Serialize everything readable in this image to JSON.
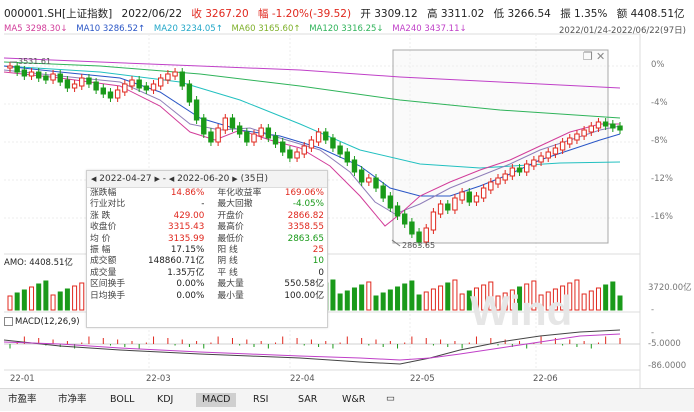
{
  "header": {
    "code": "000001.SH[上证指数]",
    "date": "2022/06/22",
    "close": "收 3267.20",
    "change": "幅 -1.20%(-39.52)",
    "open": "开 3309.12",
    "high": "高 3311.02",
    "low": "低 3266.54",
    "turnover": "振 1.35%",
    "amount": "额 4408.51亿"
  },
  "ma_legend": [
    {
      "label": "MA5 3298.30↓",
      "color": "#d23d9a"
    },
    {
      "label": "MA10 3286.52↑",
      "color": "#2a56c6"
    },
    {
      "label": "MA20 3234.05↑",
      "color": "#22a7c8"
    },
    {
      "label": "MA60 3165.60↑",
      "color": "#7fb02b"
    },
    {
      "label": "MA120 3316.25↓",
      "color": "#2fb35a"
    },
    {
      "label": "MA240 3437.11↓",
      "color": "#c040c8"
    }
  ],
  "date_range": "2022/01/24-2022/06/22(97日)",
  "y_axis": [
    "0%",
    "-4%",
    "-8%",
    "-12%",
    "-16%"
  ],
  "annotations": {
    "high": "3531.61",
    "low": "2863.65"
  },
  "volume": {
    "label": "AMO: 4408.51亿",
    "axis": "3720.00亿"
  },
  "macd": {
    "label": "MACD(12,26,9)",
    "axis_top": "-5.0000",
    "axis_bottom": "-86.0000",
    "axis_neg": "-",
    "axis_neg2": "-"
  },
  "x_axis": [
    "22-01",
    "22-03",
    "22-04",
    "22-05",
    "22-06"
  ],
  "watermark": "Wind",
  "stats_panel": {
    "start_date": "2022-04-27",
    "dash": "-",
    "end_date": "2022-06-20",
    "days": "(35日)",
    "rows": [
      {
        "l1": "涨跌幅",
        "v1": "14.86%",
        "l2": "年化收益率",
        "v2": "169.06%",
        "c1": "red",
        "c2": "red"
      },
      {
        "l1": "行业对比",
        "v1": "-",
        "l2": "最大回撤",
        "v2": "-4.05%",
        "c1": "",
        "c2": "green"
      },
      {
        "l1": "涨 跌",
        "v1": "429.00",
        "l2": "开盘价",
        "v2": "2866.82",
        "c1": "red",
        "c2": "red"
      },
      {
        "l1": "收盘价",
        "v1": "3315.43",
        "l2": "最高价",
        "v2": "3358.55",
        "c1": "red",
        "c2": "red"
      },
      {
        "l1": "均 价",
        "v1": "3135.99",
        "l2": "最低价",
        "v2": "2863.65",
        "c1": "red",
        "c2": "green"
      },
      {
        "l1": "振 幅",
        "v1": "17.15%",
        "l2": "阳 线",
        "v2": "25",
        "c1": "",
        "c2": "red"
      },
      {
        "l1": "成交额",
        "v1": "148860.71亿",
        "l2": "阴 线",
        "v2": "10",
        "c1": "",
        "c2": "green"
      },
      {
        "l1": "成交量",
        "v1": "1.35万亿",
        "l2": "平 线",
        "v2": "0",
        "c1": "",
        "c2": ""
      },
      {
        "l1": "区间换手",
        "v1": "0.00%",
        "l2": "最大量",
        "v2": "550.58亿",
        "c1": "",
        "c2": ""
      },
      {
        "l1": "日均换手",
        "v1": "0.00%",
        "l2": "最小量",
        "v2": "100.00亿",
        "c1": "",
        "c2": ""
      }
    ]
  },
  "tabs": [
    {
      "label": "市盈率"
    },
    {
      "label": "市净率"
    },
    {
      "label": "BOLL"
    },
    {
      "label": "KDJ"
    },
    {
      "label": "MACD"
    },
    {
      "label": "RSI"
    },
    {
      "label": "SAR"
    },
    {
      "label": "W&R"
    }
  ],
  "colors": {
    "up": "#e0281e",
    "down": "#1a9a1a"
  }
}
